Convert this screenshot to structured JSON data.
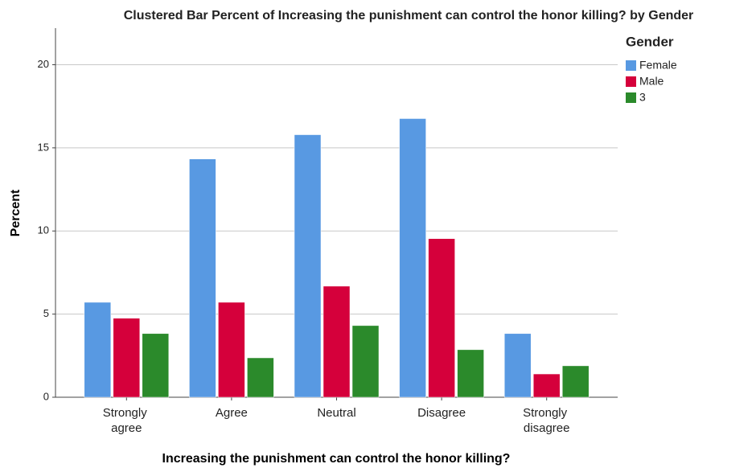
{
  "chart_data": {
    "type": "bar",
    "title": "Clustered Bar Percent of Increasing the punishment can control the honor killing? by Gender",
    "x_label": "Increasing the punishment can control the honor killing?",
    "y_label": "Percent",
    "legend_title": "Gender",
    "categories": [
      "Strongly agree",
      "Agree",
      "Neutral",
      "Disagree",
      "Strongly disagree"
    ],
    "series": [
      {
        "name": "Female",
        "color": "#5899e2",
        "values": [
          5.71,
          14.33,
          15.79,
          16.76,
          3.83
        ]
      },
      {
        "name": "Male",
        "color": "#d5003b",
        "values": [
          4.75,
          5.71,
          6.68,
          9.54,
          1.4
        ]
      },
      {
        "name": "3",
        "color": "#2b8a2b",
        "values": [
          3.83,
          2.37,
          4.31,
          2.86,
          1.89
        ]
      }
    ],
    "ylim": [
      0,
      22.2
    ],
    "yticks": [
      0,
      5,
      10,
      15,
      20
    ],
    "grid": true,
    "legend": "right"
  }
}
